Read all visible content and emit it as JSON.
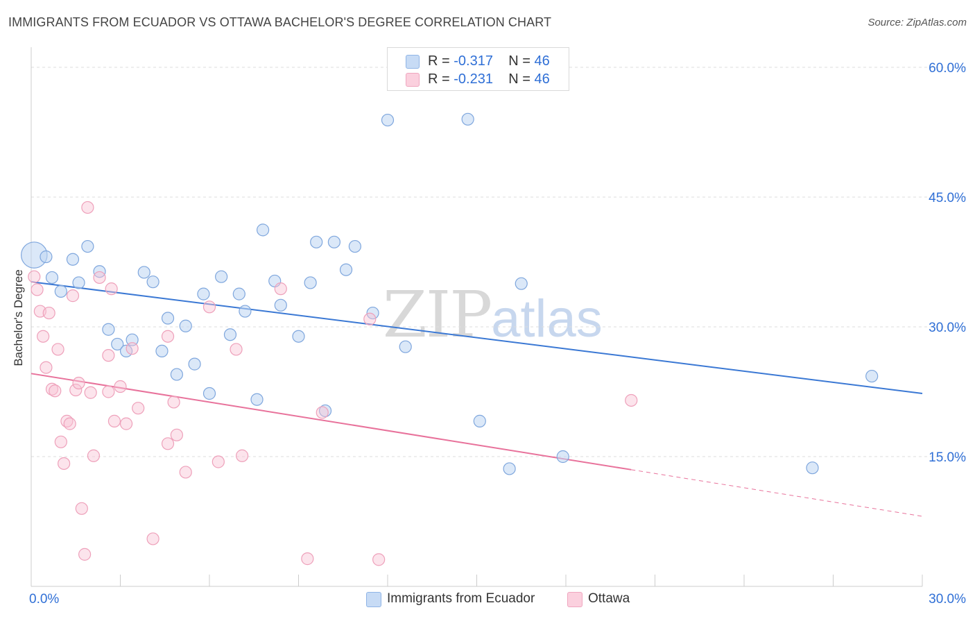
{
  "title": "IMMIGRANTS FROM ECUADOR VS OTTAWA BACHELOR'S DEGREE CORRELATION CHART",
  "source": "Source: ZipAtlas.com",
  "watermark": {
    "zip": "ZIP",
    "atlas": "atlas"
  },
  "legend": {
    "rows": [
      {
        "r_label": "R = ",
        "r_value": "-0.317",
        "n_label": "N = ",
        "n_value": "46"
      },
      {
        "r_label": "R = ",
        "r_value": "-0.231",
        "n_label": "N = ",
        "n_value": "46"
      }
    ]
  },
  "bottom_legend": {
    "series1": "Immigrants from Ecuador",
    "series2": "Ottawa"
  },
  "chart_data": {
    "type": "scatter",
    "title": "IMMIGRANTS FROM ECUADOR VS OTTAWA BACHELOR'S DEGREE CORRELATION CHART",
    "xlabel": "",
    "ylabel": "Bachelor's Degree",
    "xlim": [
      0,
      30
    ],
    "ylim": [
      0,
      60
    ],
    "x_tick_labels": [
      "0.0%",
      "30.0%"
    ],
    "y_ticks": [
      15,
      30,
      45,
      60
    ],
    "y_tick_labels": [
      "15.0%",
      "30.0%",
      "45.0%",
      "60.0%"
    ],
    "grid": true,
    "legend_position": "top-center",
    "colors": {
      "series1": "#a9c8f0",
      "series1_line": "#3a78d4",
      "series2": "#f5b8cb",
      "series2_line": "#e8729b",
      "tick_text": "#2f6fd6"
    },
    "series": [
      {
        "name": "Immigrants from Ecuador",
        "r": -0.317,
        "n": 46,
        "trend": {
          "x0": 0,
          "y0": 35.2,
          "x1": 30,
          "y1": 22.3
        },
        "points": [
          [
            0.1,
            38.3,
            2.2
          ],
          [
            0.5,
            38.1,
            1
          ],
          [
            0.7,
            35.7,
            1
          ],
          [
            1.0,
            34.1,
            1
          ],
          [
            1.4,
            37.8,
            1
          ],
          [
            1.6,
            35.1,
            1
          ],
          [
            1.9,
            39.3,
            1
          ],
          [
            2.3,
            36.4,
            1
          ],
          [
            2.6,
            29.7,
            1
          ],
          [
            2.9,
            28.0,
            1
          ],
          [
            3.2,
            27.2,
            1
          ],
          [
            3.4,
            28.5,
            1
          ],
          [
            3.8,
            36.3,
            1
          ],
          [
            4.1,
            35.2,
            1
          ],
          [
            4.4,
            27.2,
            1
          ],
          [
            4.6,
            31.0,
            1
          ],
          [
            4.9,
            24.5,
            1
          ],
          [
            5.2,
            30.1,
            1
          ],
          [
            5.5,
            25.7,
            1
          ],
          [
            5.8,
            33.8,
            1
          ],
          [
            6.0,
            22.3,
            1
          ],
          [
            6.4,
            35.8,
            1
          ],
          [
            6.7,
            29.1,
            1
          ],
          [
            7.0,
            33.8,
            1
          ],
          [
            7.2,
            31.8,
            1
          ],
          [
            7.6,
            21.6,
            1
          ],
          [
            7.8,
            41.2,
            1
          ],
          [
            8.2,
            35.3,
            1
          ],
          [
            8.4,
            32.5,
            1
          ],
          [
            9.0,
            28.9,
            1
          ],
          [
            9.4,
            35.1,
            1
          ],
          [
            9.6,
            39.8,
            1
          ],
          [
            9.9,
            20.3,
            1
          ],
          [
            10.2,
            39.8,
            1
          ],
          [
            10.6,
            36.6,
            1
          ],
          [
            10.9,
            39.3,
            1
          ],
          [
            11.5,
            31.6,
            1
          ],
          [
            12.0,
            53.9,
            1
          ],
          [
            12.6,
            27.7,
            1
          ],
          [
            14.7,
            54.0,
            1
          ],
          [
            15.1,
            19.1,
            1
          ],
          [
            16.1,
            13.6,
            1
          ],
          [
            16.5,
            35.0,
            1
          ],
          [
            17.9,
            15.0,
            1
          ],
          [
            26.3,
            13.7,
            1
          ],
          [
            28.3,
            24.3,
            1
          ]
        ]
      },
      {
        "name": "Ottawa",
        "r": -0.231,
        "n": 46,
        "trend": {
          "x0": 0,
          "y0": 24.6,
          "x1": 30,
          "y1": 8.1,
          "solid_until": 20.2
        },
        "points": [
          [
            0.1,
            35.8,
            1
          ],
          [
            0.2,
            34.3,
            1
          ],
          [
            0.3,
            31.8,
            1
          ],
          [
            0.4,
            28.9,
            1
          ],
          [
            0.5,
            25.3,
            1
          ],
          [
            0.6,
            31.6,
            1
          ],
          [
            0.7,
            22.8,
            1
          ],
          [
            0.8,
            22.6,
            1
          ],
          [
            0.9,
            27.4,
            1
          ],
          [
            1.0,
            16.7,
            1
          ],
          [
            1.1,
            14.2,
            1
          ],
          [
            1.2,
            19.1,
            1
          ],
          [
            1.3,
            18.8,
            1
          ],
          [
            1.4,
            33.6,
            1
          ],
          [
            1.5,
            22.7,
            1
          ],
          [
            1.6,
            23.5,
            1
          ],
          [
            1.7,
            9.0,
            1
          ],
          [
            1.8,
            3.7,
            1
          ],
          [
            1.9,
            43.8,
            1
          ],
          [
            2.0,
            22.4,
            1
          ],
          [
            2.1,
            15.1,
            1
          ],
          [
            2.3,
            35.7,
            1
          ],
          [
            2.6,
            22.5,
            1
          ],
          [
            2.6,
            26.7,
            1
          ],
          [
            2.7,
            34.4,
            1
          ],
          [
            2.8,
            19.1,
            1
          ],
          [
            3.0,
            23.1,
            1
          ],
          [
            3.2,
            18.8,
            1
          ],
          [
            3.4,
            27.5,
            1
          ],
          [
            3.6,
            20.6,
            1
          ],
          [
            4.1,
            5.5,
            1
          ],
          [
            4.6,
            28.9,
            1
          ],
          [
            4.6,
            16.5,
            1
          ],
          [
            4.8,
            21.3,
            1
          ],
          [
            4.9,
            17.5,
            1
          ],
          [
            5.2,
            13.2,
            1
          ],
          [
            6.0,
            32.3,
            1
          ],
          [
            6.3,
            14.4,
            1
          ],
          [
            6.9,
            27.4,
            1
          ],
          [
            7.1,
            15.1,
            1
          ],
          [
            8.4,
            34.4,
            1
          ],
          [
            9.3,
            3.2,
            1
          ],
          [
            9.8,
            20.1,
            1
          ],
          [
            11.4,
            30.9,
            1
          ],
          [
            11.7,
            3.1,
            1
          ],
          [
            20.2,
            21.5,
            1
          ]
        ]
      }
    ]
  }
}
